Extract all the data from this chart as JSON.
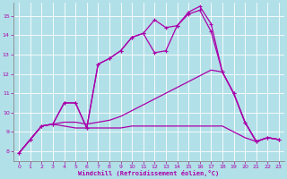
{
  "xlabel": "Windchill (Refroidissement éolien,°C)",
  "background_color": "#b2e0e8",
  "grid_color": "#c8e8e8",
  "line_color": "#aa00aa",
  "xlim": [
    -0.5,
    23.5
  ],
  "ylim": [
    7.5,
    15.7
  ],
  "xticks": [
    0,
    1,
    2,
    3,
    4,
    5,
    6,
    7,
    8,
    9,
    10,
    11,
    12,
    13,
    14,
    15,
    16,
    17,
    18,
    19,
    20,
    21,
    22,
    23
  ],
  "yticks": [
    8,
    9,
    10,
    11,
    12,
    13,
    14,
    15
  ],
  "x_values": [
    0,
    1,
    2,
    3,
    4,
    5,
    6,
    7,
    8,
    9,
    10,
    11,
    12,
    13,
    14,
    15,
    16,
    17,
    18,
    19,
    20,
    21,
    22,
    23
  ],
  "s1_marked": [
    7.9,
    8.6,
    9.3,
    9.4,
    10.5,
    10.5,
    9.2,
    12.5,
    12.8,
    13.2,
    13.9,
    14.1,
    14.8,
    14.4,
    14.5,
    15.2,
    15.5,
    14.6,
    12.1,
    11.0,
    9.5,
    8.5,
    8.7,
    8.6
  ],
  "s2_marked": [
    7.9,
    8.6,
    9.3,
    9.4,
    10.5,
    10.5,
    9.2,
    12.5,
    12.8,
    13.2,
    13.9,
    14.1,
    13.1,
    13.2,
    14.5,
    15.1,
    15.3,
    14.2,
    12.1,
    11.0,
    9.5,
    8.5,
    8.7,
    8.6
  ],
  "s3_plain": [
    7.9,
    8.6,
    9.3,
    9.4,
    9.5,
    9.5,
    9.4,
    9.5,
    9.6,
    9.8,
    10.1,
    10.4,
    10.7,
    11.0,
    11.3,
    11.6,
    11.9,
    12.2,
    12.1,
    11.0,
    9.5,
    8.5,
    8.7,
    8.6
  ],
  "s4_plain": [
    7.9,
    8.6,
    9.3,
    9.4,
    9.3,
    9.2,
    9.2,
    9.2,
    9.2,
    9.2,
    9.3,
    9.3,
    9.3,
    9.3,
    9.3,
    9.3,
    9.3,
    9.3,
    9.3,
    9.0,
    8.7,
    8.5,
    8.7,
    8.6
  ]
}
